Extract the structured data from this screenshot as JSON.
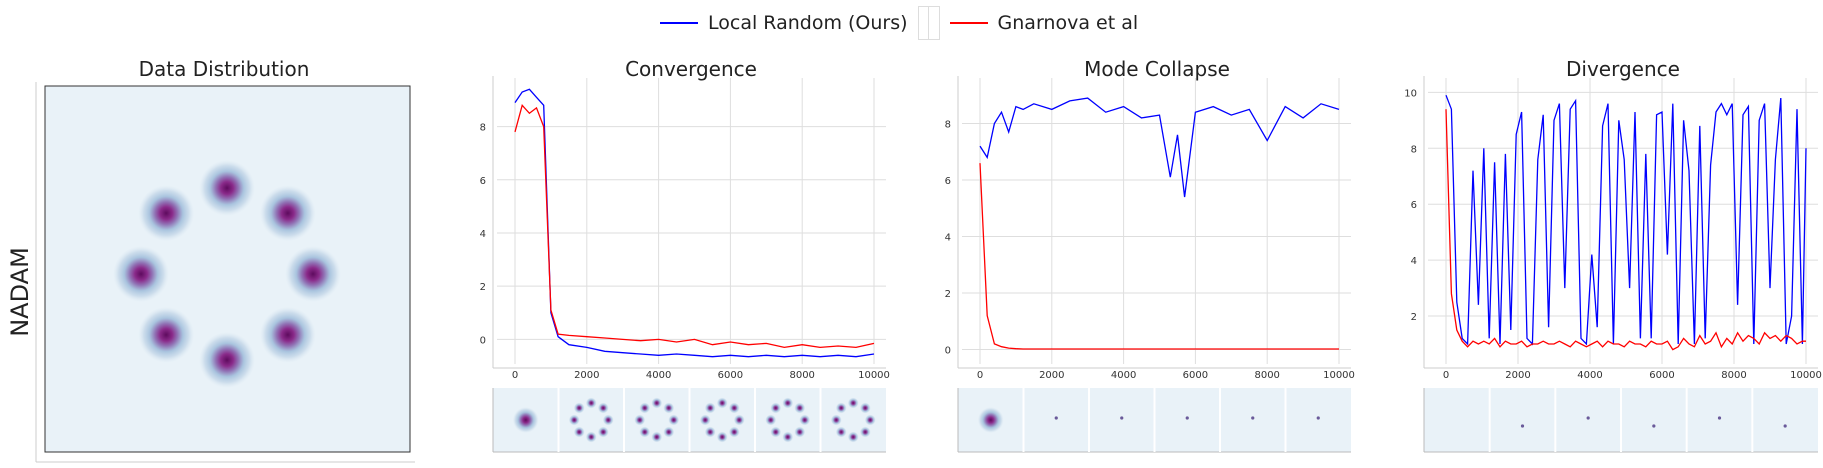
{
  "legend": {
    "ours": "Local Random (Ours)",
    "baseline": "Gnarnova et al"
  },
  "colors": {
    "ours": "#0000ff",
    "baseline": "#ff0000",
    "density_bg": "#e9f2f8",
    "density_peak": "#6b0a6b"
  },
  "row_label": "NADAM",
  "chart_data": [
    {
      "type": "heatmap",
      "title": "Data Distribution",
      "description": "8 Gaussian modes arranged on a ring",
      "modes": 8
    },
    {
      "type": "line",
      "title": "Convergence",
      "xlim": [
        0,
        10000
      ],
      "ylim": [
        -0.7,
        9.6
      ],
      "xticks": [
        0,
        2000,
        4000,
        6000,
        8000,
        10000
      ],
      "yticks": [
        0,
        2,
        4,
        6,
        8
      ],
      "x": [
        0,
        200,
        400,
        600,
        800,
        1000,
        1200,
        1500,
        2000,
        2500,
        3000,
        3500,
        4000,
        4500,
        5000,
        5500,
        6000,
        6500,
        7000,
        7500,
        8000,
        8500,
        9000,
        9500,
        10000
      ],
      "series": [
        {
          "name": "Local Random (Ours)",
          "key": "ours",
          "values": [
            8.9,
            9.3,
            9.4,
            9.1,
            8.8,
            1.0,
            0.1,
            -0.2,
            -0.3,
            -0.45,
            -0.5,
            -0.55,
            -0.6,
            -0.55,
            -0.6,
            -0.65,
            -0.6,
            -0.65,
            -0.6,
            -0.65,
            -0.6,
            -0.65,
            -0.6,
            -0.65,
            -0.55
          ]
        },
        {
          "name": "Gnarnova et al",
          "key": "baseline",
          "values": [
            7.8,
            8.8,
            8.5,
            8.7,
            8.0,
            1.1,
            0.2,
            0.15,
            0.1,
            0.05,
            0.0,
            -0.05,
            0.0,
            -0.1,
            0.0,
            -0.2,
            -0.1,
            -0.2,
            -0.15,
            -0.3,
            -0.2,
            -0.3,
            -0.25,
            -0.3,
            -0.15
          ]
        }
      ],
      "thumbnails": [
        "center blob",
        "ring of 8 modes",
        "ring of 8 modes",
        "ring of 8 modes",
        "ring of 8 modes",
        "ring of 8 modes"
      ]
    },
    {
      "type": "line",
      "title": "Mode Collapse",
      "xlim": [
        0,
        10000
      ],
      "ylim": [
        -0.3,
        9.4
      ],
      "xticks": [
        0,
        2000,
        4000,
        6000,
        8000,
        10000
      ],
      "yticks": [
        0,
        2,
        4,
        6,
        8
      ],
      "x": [
        0,
        200,
        400,
        600,
        800,
        1000,
        1200,
        1500,
        2000,
        2500,
        3000,
        3500,
        4000,
        4500,
        5000,
        5300,
        5500,
        5700,
        6000,
        6500,
        7000,
        7500,
        8000,
        8500,
        9000,
        9500,
        10000
      ],
      "series": [
        {
          "name": "Local Random (Ours)",
          "key": "ours",
          "values": [
            7.2,
            6.8,
            8.0,
            8.4,
            7.7,
            8.6,
            8.5,
            8.7,
            8.5,
            8.8,
            8.9,
            8.4,
            8.6,
            8.2,
            8.3,
            6.1,
            7.6,
            5.4,
            8.4,
            8.6,
            8.3,
            8.5,
            7.4,
            8.6,
            8.2,
            8.7,
            8.5
          ]
        },
        {
          "name": "Gnarnova et al",
          "key": "baseline",
          "values": [
            6.6,
            1.2,
            0.2,
            0.1,
            0.05,
            0.03,
            0.02,
            0.02,
            0.02,
            0.02,
            0.02,
            0.02,
            0.02,
            0.02,
            0.02,
            0.02,
            0.02,
            0.02,
            0.02,
            0.02,
            0.02,
            0.02,
            0.02,
            0.02,
            0.02,
            0.02,
            0.02
          ]
        }
      ],
      "thumbnails": [
        "center blob",
        "single point",
        "single point",
        "single point",
        "single point",
        "single point"
      ]
    },
    {
      "type": "line",
      "title": "Divergence",
      "xlim": [
        0,
        10000
      ],
      "ylim": [
        0.5,
        10.3
      ],
      "xticks": [
        0,
        2000,
        4000,
        6000,
        8000,
        10000
      ],
      "yticks": [
        2,
        4,
        6,
        8,
        10
      ],
      "x": [
        0,
        150,
        300,
        450,
        600,
        750,
        900,
        1050,
        1200,
        1350,
        1500,
        1650,
        1800,
        1950,
        2100,
        2250,
        2400,
        2550,
        2700,
        2850,
        3000,
        3150,
        3300,
        3450,
        3600,
        3750,
        3900,
        4050,
        4200,
        4350,
        4500,
        4650,
        4800,
        4950,
        5100,
        5250,
        5400,
        5550,
        5700,
        5850,
        6000,
        6150,
        6300,
        6450,
        6600,
        6750,
        6900,
        7050,
        7200,
        7350,
        7500,
        7650,
        7800,
        7950,
        8100,
        8250,
        8400,
        8550,
        8700,
        8850,
        9000,
        9150,
        9300,
        9450,
        9600,
        9750,
        9900,
        10000
      ],
      "series": [
        {
          "name": "Local Random (Ours)",
          "key": "ours",
          "values": [
            9.9,
            9.4,
            2.5,
            1.2,
            1.0,
            7.2,
            2.4,
            8.0,
            1.2,
            7.5,
            1.0,
            7.8,
            1.5,
            8.5,
            9.3,
            1.2,
            1.0,
            7.6,
            9.2,
            1.6,
            9.0,
            9.6,
            3.0,
            9.4,
            9.7,
            1.2,
            1.0,
            4.2,
            1.6,
            8.8,
            9.6,
            1.0,
            9.0,
            7.6,
            3.0,
            9.3,
            1.2,
            7.8,
            1.2,
            9.2,
            9.3,
            4.2,
            9.6,
            1.0,
            9.0,
            7.2,
            1.0,
            8.8,
            1.2,
            7.4,
            9.3,
            9.6,
            9.2,
            9.6,
            2.4,
            9.2,
            9.5,
            1.0,
            9.0,
            9.6,
            3.0,
            7.6,
            9.8,
            1.0,
            2.0,
            9.4,
            1.0,
            8.0
          ]
        },
        {
          "name": "Gnarnova et al",
          "key": "baseline",
          "values": [
            9.4,
            2.8,
            1.5,
            1.1,
            0.9,
            1.1,
            1.0,
            1.1,
            1.0,
            1.2,
            0.9,
            1.1,
            1.0,
            1.0,
            1.1,
            0.9,
            1.0,
            1.0,
            1.1,
            1.0,
            1.0,
            1.1,
            1.0,
            0.9,
            1.1,
            1.0,
            0.9,
            1.0,
            1.1,
            0.9,
            1.1,
            1.0,
            1.0,
            0.9,
            1.1,
            1.0,
            1.0,
            0.9,
            1.1,
            1.0,
            1.0,
            1.1,
            0.8,
            0.9,
            1.2,
            1.0,
            0.9,
            1.3,
            1.0,
            1.1,
            1.4,
            0.9,
            1.2,
            1.0,
            1.4,
            1.1,
            1.3,
            1.2,
            1.0,
            1.4,
            1.2,
            1.3,
            1.1,
            1.3,
            1.2,
            1.0,
            1.1,
            1.1
          ]
        }
      ],
      "thumbnails": [
        "empty",
        "single point",
        "single point",
        "single point",
        "single point",
        "single point"
      ]
    }
  ]
}
